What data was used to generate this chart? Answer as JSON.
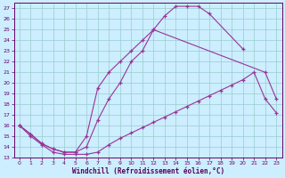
{
  "xlabel": "Windchill (Refroidissement éolien,°C)",
  "xlim": [
    -0.5,
    23.5
  ],
  "ylim": [
    13,
    27.5
  ],
  "yticks": [
    13,
    14,
    15,
    16,
    17,
    18,
    19,
    20,
    21,
    22,
    23,
    24,
    25,
    26,
    27
  ],
  "xticks": [
    0,
    1,
    2,
    3,
    4,
    5,
    6,
    7,
    8,
    9,
    10,
    11,
    12,
    13,
    14,
    15,
    16,
    17,
    18,
    19,
    20,
    21,
    22,
    23
  ],
  "bg_color": "#cceeff",
  "line_color": "#993399",
  "grid_color": "#99cccc",
  "curve1_x": [
    0,
    1,
    2,
    3,
    4,
    5,
    6,
    7,
    8,
    9,
    10,
    11,
    12,
    13,
    14,
    15,
    16,
    17,
    18,
    19,
    20,
    21,
    22,
    23
  ],
  "curve1_y": [
    16.0,
    15.0,
    14.2,
    13.5,
    13.3,
    13.3,
    13.3,
    13.5,
    14.2,
    14.8,
    15.3,
    15.8,
    16.3,
    16.8,
    17.3,
    17.8,
    18.3,
    18.8,
    19.3,
    19.8,
    20.3,
    21.0,
    18.5,
    17.2
  ],
  "curve2_x": [
    0,
    1,
    2,
    3,
    4,
    5,
    6,
    7,
    8,
    9,
    10,
    11,
    12,
    13,
    14,
    15,
    16,
    17,
    20
  ],
  "curve2_y": [
    16.0,
    15.2,
    14.3,
    13.8,
    13.5,
    13.5,
    14.0,
    16.5,
    18.5,
    20.0,
    22.0,
    23.0,
    25.0,
    26.3,
    27.2,
    27.2,
    27.2,
    26.5,
    23.2
  ],
  "curve3_x": [
    0,
    1,
    2,
    3,
    4,
    5,
    6,
    7,
    8,
    9,
    10,
    11,
    12,
    22,
    23
  ],
  "curve3_y": [
    16.0,
    15.2,
    14.3,
    13.8,
    13.5,
    13.5,
    15.0,
    19.5,
    21.0,
    22.0,
    23.0,
    24.0,
    25.0,
    21.0,
    18.5
  ]
}
